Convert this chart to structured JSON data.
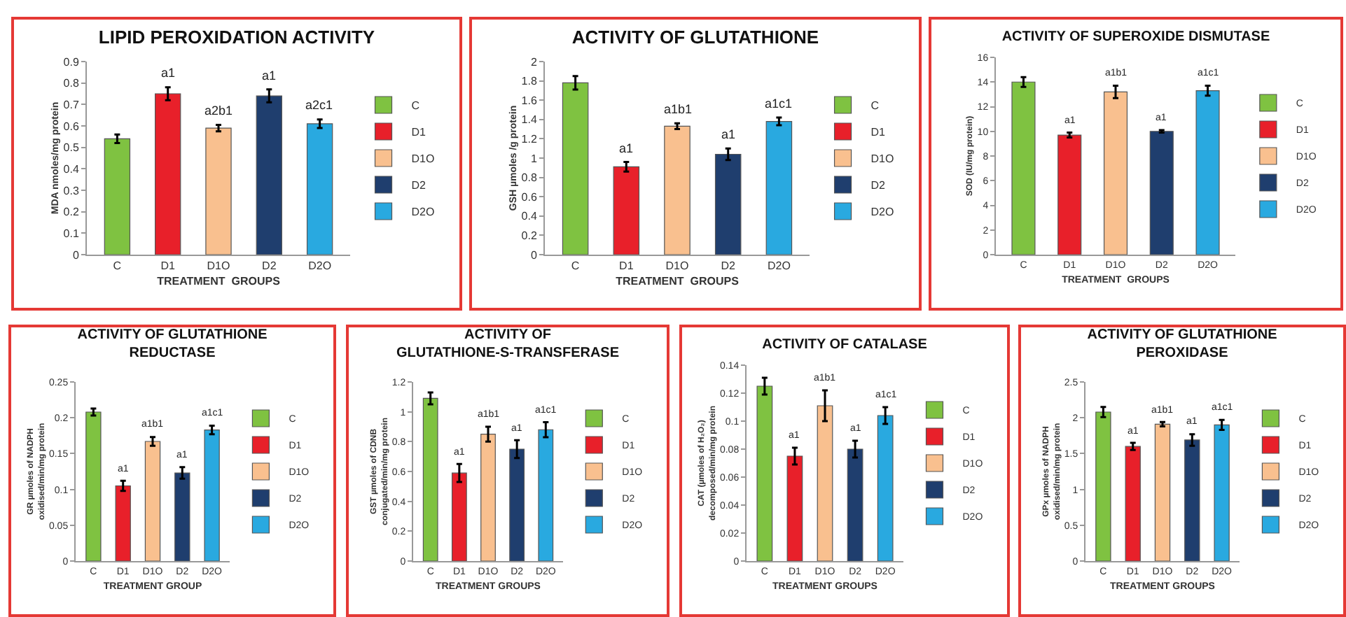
{
  "chart_data": [
    {
      "type": "bar",
      "title": "LIPID PEROXIDATION ACTIVITY",
      "xlabel": "TREATMENT  GROUPS",
      "ylabel": "MDA nmoles/mg protein",
      "categories": [
        "C",
        "D1",
        "D1O",
        "D2",
        "D2O"
      ],
      "ylim": [
        0,
        0.9
      ],
      "yticks": [
        0,
        0.1,
        0.2,
        0.3,
        0.4,
        0.5,
        0.6,
        0.7,
        0.8,
        0.9
      ],
      "legend": "right",
      "series": [
        {
          "name": "C",
          "color": "#7fc241",
          "values": [
            0.54,
            null,
            null,
            null,
            null
          ],
          "errors": [
            0.02,
            null,
            null,
            null,
            null
          ]
        },
        {
          "name": "D1",
          "color": "#e8202a",
          "values": [
            null,
            0.75,
            null,
            null,
            null
          ],
          "errors": [
            null,
            0.03,
            null,
            null,
            null
          ]
        },
        {
          "name": "D1O",
          "color": "#f9c08f",
          "values": [
            null,
            null,
            0.59,
            null,
            null
          ],
          "errors": [
            null,
            null,
            0.015,
            null,
            null
          ]
        },
        {
          "name": "D2",
          "color": "#1f3e6e",
          "values": [
            null,
            null,
            null,
            0.74,
            null
          ],
          "errors": [
            null,
            null,
            null,
            0.03,
            null
          ]
        },
        {
          "name": "D2O",
          "color": "#29a9e0",
          "values": [
            null,
            null,
            null,
            null,
            0.61
          ],
          "errors": [
            null,
            null,
            null,
            null,
            0.02
          ]
        }
      ],
      "annotations": [
        {
          "text": "a1",
          "x": "D1",
          "y": 0.78
        },
        {
          "text": "a2b1",
          "x": "D1O",
          "y": 0.605
        },
        {
          "text": "a1",
          "x": "D2",
          "y": 0.77
        },
        {
          "text": "a2c1",
          "x": "D2O",
          "y": 0.63
        }
      ]
    },
    {
      "type": "bar",
      "title": "ACTIVITY OF GLUTATHIONE",
      "xlabel": "TREATMENT  GROUPS",
      "ylabel": "GSH µmoles /g protein",
      "categories": [
        "C",
        "D1",
        "D1O",
        "D2",
        "D2O"
      ],
      "ylim": [
        0,
        2
      ],
      "yticks": [
        0,
        0.2,
        0.4,
        0.6,
        0.8,
        1,
        1.2,
        1.4,
        1.6,
        1.8,
        2
      ],
      "legend": "right",
      "series": [
        {
          "name": "C",
          "color": "#7fc241",
          "values": [
            1.78,
            null,
            null,
            null,
            null
          ],
          "errors": [
            0.07,
            null,
            null,
            null,
            null
          ]
        },
        {
          "name": "D1",
          "color": "#e8202a",
          "values": [
            null,
            0.91,
            null,
            null,
            null
          ],
          "errors": [
            null,
            0.05,
            null,
            null,
            null
          ]
        },
        {
          "name": "D1O",
          "color": "#f9c08f",
          "values": [
            null,
            null,
            1.33,
            null,
            null
          ],
          "errors": [
            null,
            null,
            0.03,
            null,
            null
          ]
        },
        {
          "name": "D2",
          "color": "#1f3e6e",
          "values": [
            null,
            null,
            null,
            1.04,
            null
          ],
          "errors": [
            null,
            null,
            null,
            0.06,
            null
          ]
        },
        {
          "name": "D2O",
          "color": "#29a9e0",
          "values": [
            null,
            null,
            null,
            null,
            1.38
          ],
          "errors": [
            null,
            null,
            null,
            null,
            0.04
          ]
        }
      ],
      "annotations": [
        {
          "text": "a1",
          "x": "D1",
          "y": 0.96
        },
        {
          "text": "a1b1",
          "x": "D1O",
          "y": 1.36
        },
        {
          "text": "a1",
          "x": "D2",
          "y": 1.1
        },
        {
          "text": "a1c1",
          "x": "D2O",
          "y": 1.42
        }
      ]
    },
    {
      "type": "bar",
      "title": "ACTIVITY OF SUPEROXIDE DISMUTASE",
      "xlabel": "TREATMENT  GROUPS",
      "ylabel": "SOD (IU/mg protein)",
      "categories": [
        "C",
        "D1",
        "D1O",
        "D2",
        "D2O"
      ],
      "ylim": [
        0,
        16
      ],
      "yticks": [
        0,
        2,
        4,
        6,
        8,
        10,
        12,
        14,
        16
      ],
      "legend": "right",
      "series": [
        {
          "name": "C",
          "color": "#7fc241",
          "values": [
            14.0,
            null,
            null,
            null,
            null
          ],
          "errors": [
            0.4,
            null,
            null,
            null,
            null
          ]
        },
        {
          "name": "D1",
          "color": "#e8202a",
          "values": [
            null,
            9.7,
            null,
            null,
            null
          ],
          "errors": [
            null,
            0.2,
            null,
            null,
            null
          ]
        },
        {
          "name": "D1O",
          "color": "#f9c08f",
          "values": [
            null,
            null,
            13.2,
            null,
            null
          ],
          "errors": [
            null,
            null,
            0.5,
            null,
            null
          ]
        },
        {
          "name": "D2",
          "color": "#1f3e6e",
          "values": [
            null,
            null,
            null,
            10.0,
            null
          ],
          "errors": [
            null,
            null,
            null,
            0.1,
            null
          ]
        },
        {
          "name": "D2O",
          "color": "#29a9e0",
          "values": [
            null,
            null,
            null,
            null,
            13.3
          ],
          "errors": [
            null,
            null,
            null,
            null,
            0.4
          ]
        }
      ],
      "annotations": [
        {
          "text": "a1",
          "x": "D1",
          "y": 9.9
        },
        {
          "text": "a1b1",
          "x": "D1O",
          "y": 13.7
        },
        {
          "text": "a1",
          "x": "D2",
          "y": 10.1
        },
        {
          "text": "a1c1",
          "x": "D2O",
          "y": 13.7
        }
      ]
    },
    {
      "type": "bar",
      "title": "ACTIVITY OF GLUTATHIONE REDUCTASE",
      "xlabel": "TREATMENT GROUP",
      "ylabel": "GR µmoles of NADPH oxidised/min/mg protein",
      "categories": [
        "C",
        "D1",
        "D1O",
        "D2",
        "D2O"
      ],
      "ylim": [
        0,
        0.25
      ],
      "yticks": [
        0,
        0.05,
        0.1,
        0.15,
        0.2,
        0.25
      ],
      "legend": "right",
      "series": [
        {
          "name": "C",
          "color": "#7fc241",
          "values": [
            0.208,
            null,
            null,
            null,
            null
          ],
          "errors": [
            0.005,
            null,
            null,
            null,
            null
          ]
        },
        {
          "name": "D1",
          "color": "#e8202a",
          "values": [
            null,
            0.105,
            null,
            null,
            null
          ],
          "errors": [
            null,
            0.007,
            null,
            null,
            null
          ]
        },
        {
          "name": "D1O",
          "color": "#f9c08f",
          "values": [
            null,
            null,
            0.167,
            null,
            null
          ],
          "errors": [
            null,
            null,
            0.006,
            null,
            null
          ]
        },
        {
          "name": "D2",
          "color": "#1f3e6e",
          "values": [
            null,
            null,
            null,
            0.123,
            null
          ],
          "errors": [
            null,
            null,
            null,
            0.008,
            null
          ]
        },
        {
          "name": "D2O",
          "color": "#29a9e0",
          "values": [
            null,
            null,
            null,
            null,
            0.183
          ],
          "errors": [
            null,
            null,
            null,
            null,
            0.006
          ]
        }
      ],
      "annotations": [
        {
          "text": "a1",
          "x": "D1",
          "y": 0.112
        },
        {
          "text": "a1b1",
          "x": "D1O",
          "y": 0.173
        },
        {
          "text": "a1",
          "x": "D2",
          "y": 0.131
        },
        {
          "text": "a1c1",
          "x": "D2O",
          "y": 0.189
        }
      ]
    },
    {
      "type": "bar",
      "title": "ACTIVITY OF GLUTATHIONE-S-TRANSFERASE",
      "xlabel": "TREATMENT GROUPS",
      "ylabel": "GST µmoles of CDNB conjugated/min/mg protein",
      "categories": [
        "C",
        "D1",
        "D1O",
        "D2",
        "D2O"
      ],
      "ylim": [
        0,
        1.2
      ],
      "yticks": [
        0,
        0.2,
        0.4,
        0.6,
        0.8,
        1,
        1.2
      ],
      "legend": "right",
      "series": [
        {
          "name": "C",
          "color": "#7fc241",
          "values": [
            1.09,
            null,
            null,
            null,
            null
          ],
          "errors": [
            0.04,
            null,
            null,
            null,
            null
          ]
        },
        {
          "name": "D1",
          "color": "#e8202a",
          "values": [
            null,
            0.59,
            null,
            null,
            null
          ],
          "errors": [
            null,
            0.06,
            null,
            null,
            null
          ]
        },
        {
          "name": "D1O",
          "color": "#f9c08f",
          "values": [
            null,
            null,
            0.85,
            null,
            null
          ],
          "errors": [
            null,
            null,
            0.05,
            null,
            null
          ]
        },
        {
          "name": "D2",
          "color": "#1f3e6e",
          "values": [
            null,
            null,
            null,
            0.75,
            null
          ],
          "errors": [
            null,
            null,
            null,
            0.06,
            null
          ]
        },
        {
          "name": "D2O",
          "color": "#29a9e0",
          "values": [
            null,
            null,
            null,
            null,
            0.88
          ],
          "errors": [
            null,
            null,
            null,
            null,
            0.05
          ]
        }
      ],
      "annotations": [
        {
          "text": "a1",
          "x": "D1",
          "y": 0.65
        },
        {
          "text": "a1b1",
          "x": "D1O",
          "y": 0.9
        },
        {
          "text": "a1",
          "x": "D2",
          "y": 0.81
        },
        {
          "text": "a1c1",
          "x": "D2O",
          "y": 0.93
        }
      ]
    },
    {
      "type": "bar",
      "title": "ACTIVITY OF CATALASE",
      "xlabel": "TREATMENT GROUPS",
      "ylabel": "CAT (µmoles of H₂O₂) decomposed/min/mg protein",
      "categories": [
        "C",
        "D1",
        "D1O",
        "D2",
        "D2O"
      ],
      "ylim": [
        0,
        0.14
      ],
      "yticks": [
        0,
        0.02,
        0.04,
        0.06,
        0.08,
        0.1,
        0.12,
        0.14
      ],
      "legend": "right",
      "series": [
        {
          "name": "C",
          "color": "#7fc241",
          "values": [
            0.125,
            null,
            null,
            null,
            null
          ],
          "errors": [
            0.006,
            null,
            null,
            null,
            null
          ]
        },
        {
          "name": "D1",
          "color": "#e8202a",
          "values": [
            null,
            0.075,
            null,
            null,
            null
          ],
          "errors": [
            null,
            0.006,
            null,
            null,
            null
          ]
        },
        {
          "name": "D1O",
          "color": "#f9c08f",
          "values": [
            null,
            null,
            0.111,
            null,
            null
          ],
          "errors": [
            null,
            null,
            0.011,
            null,
            null
          ]
        },
        {
          "name": "D2",
          "color": "#1f3e6e",
          "values": [
            null,
            null,
            null,
            0.08,
            null
          ],
          "errors": [
            null,
            null,
            null,
            0.006,
            null
          ]
        },
        {
          "name": "D2O",
          "color": "#29a9e0",
          "values": [
            null,
            null,
            null,
            null,
            0.104
          ],
          "errors": [
            null,
            null,
            null,
            null,
            0.006
          ]
        }
      ],
      "annotations": [
        {
          "text": "a1",
          "x": "D1",
          "y": 0.081
        },
        {
          "text": "a1b1",
          "x": "D1O",
          "y": 0.122
        },
        {
          "text": "a1",
          "x": "D2",
          "y": 0.086
        },
        {
          "text": "a1c1",
          "x": "D2O",
          "y": 0.11
        }
      ]
    },
    {
      "type": "bar",
      "title": "ACTIVITY OF GLUTATHIONE PEROXIDASE",
      "xlabel": "TREATMENT GROUPS",
      "ylabel": "GPx µmoles of NADPH oxidised/min/mg protein",
      "categories": [
        "C",
        "D1",
        "D1O",
        "D2",
        "D2O"
      ],
      "ylim": [
        0,
        2.5
      ],
      "yticks": [
        0,
        0.5,
        1,
        1.5,
        2,
        2.5
      ],
      "legend": "right",
      "series": [
        {
          "name": "C",
          "color": "#7fc241",
          "values": [
            2.08,
            null,
            null,
            null,
            null
          ],
          "errors": [
            0.07,
            null,
            null,
            null,
            null
          ]
        },
        {
          "name": "D1",
          "color": "#e8202a",
          "values": [
            null,
            1.6,
            null,
            null,
            null
          ],
          "errors": [
            null,
            0.05,
            null,
            null,
            null
          ]
        },
        {
          "name": "D1O",
          "color": "#f9c08f",
          "values": [
            null,
            null,
            1.91,
            null,
            null
          ],
          "errors": [
            null,
            null,
            0.03,
            null,
            null
          ]
        },
        {
          "name": "D2",
          "color": "#1f3e6e",
          "values": [
            null,
            null,
            null,
            1.69,
            null
          ],
          "errors": [
            null,
            null,
            null,
            0.08,
            null
          ]
        },
        {
          "name": "D2O",
          "color": "#29a9e0",
          "values": [
            null,
            null,
            null,
            null,
            1.9
          ],
          "errors": [
            null,
            null,
            null,
            null,
            0.07
          ]
        }
      ],
      "annotations": [
        {
          "text": "a1",
          "x": "D1",
          "y": 1.65
        },
        {
          "text": "a1b1",
          "x": "D1O",
          "y": 1.94
        },
        {
          "text": "a1",
          "x": "D2",
          "y": 1.77
        },
        {
          "text": "a1c1",
          "x": "D2O",
          "y": 1.97
        }
      ]
    }
  ]
}
